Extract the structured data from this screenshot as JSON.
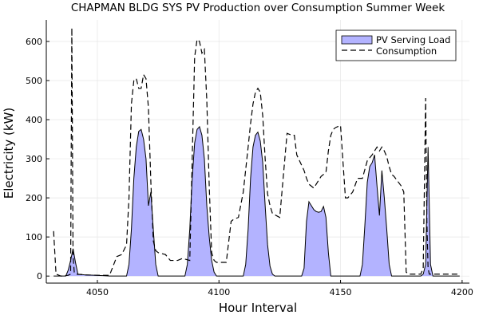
{
  "chart_data": {
    "type": "area",
    "title": "CHAPMAN BLDG SYS PV Production over Consumption Summer Week",
    "xlabel": "Hour Interval",
    "ylabel": "Electricity (kW)",
    "xlim": [
      4029,
      4203
    ],
    "ylim": [
      -18,
      655
    ],
    "xticks": [
      4050,
      4100,
      4150,
      4200
    ],
    "yticks": [
      0,
      100,
      200,
      300,
      400,
      500,
      600
    ],
    "grid": true,
    "legend_position": "top-right",
    "colors": {
      "pv_fill": "#b3b3ff",
      "pv_line": "#000000",
      "consumption_line": "#000000"
    },
    "series": [
      {
        "name": "PV Serving Load",
        "style": "filled-area",
        "x": [
          4032,
          4037,
          4038,
          4039,
          4040,
          4041,
          4042,
          4045,
          4050,
          4055,
          4062,
          4063,
          4064,
          4065,
          4066,
          4067,
          4068,
          4069,
          4070,
          4071,
          4072,
          4073,
          4074,
          4075,
          4086,
          4087,
          4088,
          4089,
          4090,
          4091,
          4092,
          4093,
          4094,
          4095,
          4096,
          4097,
          4098,
          4099,
          4110,
          4111,
          4112,
          4113,
          4114,
          4115,
          4116,
          4117,
          4118,
          4119,
          4120,
          4121,
          4122,
          4123,
          4134,
          4135,
          4136,
          4137,
          4138,
          4139,
          4140,
          4141,
          4142,
          4143,
          4144,
          4145,
          4146,
          4158,
          4159,
          4160,
          4161,
          4162,
          4163,
          4164,
          4165,
          4166,
          4167,
          4168,
          4169,
          4170,
          4171,
          4183,
          4184,
          4185,
          4186,
          4187,
          4188,
          4199
        ],
        "values": [
          0,
          0,
          15,
          40,
          70,
          35,
          5,
          3,
          2,
          0,
          0,
          30,
          120,
          250,
          330,
          370,
          375,
          350,
          300,
          180,
          215,
          120,
          30,
          0,
          0,
          30,
          120,
          250,
          340,
          375,
          382,
          360,
          300,
          180,
          100,
          40,
          10,
          0,
          0,
          30,
          120,
          250,
          330,
          360,
          368,
          345,
          290,
          180,
          80,
          25,
          5,
          0,
          0,
          20,
          140,
          190,
          180,
          170,
          165,
          163,
          165,
          178,
          150,
          60,
          0,
          0,
          30,
          130,
          240,
          280,
          290,
          310,
          230,
          155,
          270,
          200,
          120,
          30,
          0,
          0,
          5,
          30,
          330,
          30,
          0,
          0
        ]
      },
      {
        "name": "Consumption",
        "style": "dashed-line",
        "x": [
          4032,
          4033,
          4035,
          4038,
          4039,
          4039.5,
          4040,
          4040.5,
          4041,
          4045,
          4050,
          4055,
          4058,
          4060,
          4062,
          4063,
          4064,
          4065,
          4066,
          4067,
          4068,
          4069,
          4070,
          4071,
          4072,
          4073,
          4074,
          4075,
          4078,
          4080,
          4083,
          4085,
          4088,
          4089,
          4090,
          4091,
          4092,
          4093,
          4094,
          4095,
          4096,
          4097,
          4098,
          4099,
          4100,
          4103,
          4105,
          4106,
          4108,
          4110,
          4112,
          4113,
          4114,
          4115,
          4116,
          4117,
          4118,
          4119,
          4120,
          4121,
          4122,
          4125,
          4128,
          4130,
          4131,
          4132,
          4135,
          4136,
          4137,
          4138,
          4139,
          4140,
          4141,
          4142,
          4143,
          4144,
          4145,
          4146,
          4147,
          4148,
          4150,
          4152,
          4153,
          4155,
          4157,
          4159,
          4161,
          4163,
          4164,
          4165,
          4166,
          4167,
          4168,
          4169,
          4170,
          4171,
          4172,
          4175,
          4176,
          4177,
          4178,
          4180,
          4183,
          4184,
          4185,
          4185.5,
          4186,
          4186.5,
          4187,
          4188,
          4190,
          4195,
          4199
        ],
        "values": [
          115,
          5,
          0,
          2,
          5,
          635,
          50,
          10,
          5,
          3,
          2,
          2,
          50,
          55,
          80,
          200,
          440,
          500,
          505,
          480,
          480,
          515,
          505,
          430,
          240,
          90,
          65,
          60,
          55,
          40,
          40,
          45,
          40,
          300,
          560,
          605,
          600,
          570,
          580,
          450,
          230,
          60,
          40,
          35,
          35,
          35,
          140,
          145,
          150,
          215,
          330,
          390,
          440,
          470,
          480,
          470,
          410,
          300,
          210,
          180,
          160,
          150,
          365,
          360,
          360,
          310,
          270,
          250,
          235,
          230,
          225,
          235,
          245,
          255,
          260,
          265,
          320,
          360,
          375,
          380,
          385,
          200,
          200,
          215,
          250,
          250,
          295,
          310,
          320,
          330,
          320,
          330,
          320,
          305,
          280,
          260,
          255,
          230,
          215,
          10,
          5,
          5,
          5,
          20,
          455,
          140,
          20,
          5,
          5,
          5,
          5,
          5,
          5
        ]
      }
    ]
  }
}
